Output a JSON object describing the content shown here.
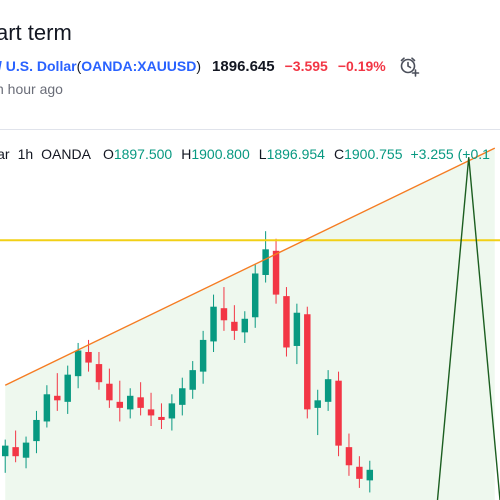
{
  "header": {
    "title": "art term",
    "symbol_name": "/ U.S. Dollar",
    "paren_open": "(",
    "symbol_code": "OANDA:XAUUSD",
    "paren_close": ")",
    "price": "1896.645",
    "change": "−3.595",
    "change_percent": "−0.19%",
    "time_ago": "n hour ago",
    "alarm_icon": "alarm-clock-plus-icon"
  },
  "legend": {
    "symbol_fragment": "lar",
    "timeframe": "1h",
    "exchange": "OANDA",
    "open_key": "O",
    "open": "1897.500",
    "high_key": "H",
    "high": "1900.800",
    "low_key": "L",
    "low": "1896.954",
    "close_key": "C",
    "close": "1900.755",
    "change": "+3.255 (+0.1"
  },
  "colors": {
    "up": "#089981",
    "down": "#f23645",
    "trendline": "#f57c22",
    "horizontal_line": "#f2d016",
    "pattern_line": "#1b5e20",
    "shading": "#eef8ee"
  },
  "chart_data": {
    "type": "candlestick",
    "candles": [
      {
        "o": 1882.9,
        "h": 1884.0,
        "l": 1881.8,
        "c": 1883.6
      },
      {
        "o": 1883.5,
        "h": 1884.6,
        "l": 1882.5,
        "c": 1882.9
      },
      {
        "o": 1882.8,
        "h": 1884.2,
        "l": 1882.1,
        "c": 1883.8
      },
      {
        "o": 1883.9,
        "h": 1885.9,
        "l": 1883.1,
        "c": 1885.3
      },
      {
        "o": 1885.2,
        "h": 1887.6,
        "l": 1884.8,
        "c": 1887.0
      },
      {
        "o": 1886.9,
        "h": 1888.4,
        "l": 1885.9,
        "c": 1886.6
      },
      {
        "o": 1886.5,
        "h": 1888.9,
        "l": 1885.7,
        "c": 1888.3
      },
      {
        "o": 1888.2,
        "h": 1890.4,
        "l": 1887.4,
        "c": 1889.9
      },
      {
        "o": 1889.8,
        "h": 1890.6,
        "l": 1888.5,
        "c": 1889.1
      },
      {
        "o": 1889.0,
        "h": 1889.8,
        "l": 1887.3,
        "c": 1887.8
      },
      {
        "o": 1887.7,
        "h": 1888.7,
        "l": 1886.1,
        "c": 1886.6
      },
      {
        "o": 1886.5,
        "h": 1887.9,
        "l": 1885.2,
        "c": 1886.1
      },
      {
        "o": 1886.0,
        "h": 1887.4,
        "l": 1885.4,
        "c": 1886.9
      },
      {
        "o": 1886.8,
        "h": 1887.8,
        "l": 1885.6,
        "c": 1886.1
      },
      {
        "o": 1886.0,
        "h": 1887.1,
        "l": 1884.9,
        "c": 1885.6
      },
      {
        "o": 1885.5,
        "h": 1886.4,
        "l": 1884.7,
        "c": 1885.3
      },
      {
        "o": 1885.4,
        "h": 1887.0,
        "l": 1884.6,
        "c": 1886.4
      },
      {
        "o": 1886.3,
        "h": 1888.1,
        "l": 1885.6,
        "c": 1887.4
      },
      {
        "o": 1887.3,
        "h": 1889.2,
        "l": 1886.7,
        "c": 1888.6
      },
      {
        "o": 1888.5,
        "h": 1891.2,
        "l": 1887.7,
        "c": 1890.6
      },
      {
        "o": 1890.5,
        "h": 1893.6,
        "l": 1889.8,
        "c": 1892.8
      },
      {
        "o": 1892.7,
        "h": 1894.1,
        "l": 1891.2,
        "c": 1891.9
      },
      {
        "o": 1891.8,
        "h": 1892.9,
        "l": 1890.6,
        "c": 1891.2
      },
      {
        "o": 1891.1,
        "h": 1892.5,
        "l": 1890.4,
        "c": 1892.0
      },
      {
        "o": 1892.1,
        "h": 1895.6,
        "l": 1891.4,
        "c": 1895.0
      },
      {
        "o": 1894.9,
        "h": 1897.8,
        "l": 1894.4,
        "c": 1896.6
      },
      {
        "o": 1896.5,
        "h": 1897.3,
        "l": 1893.0,
        "c": 1893.6
      },
      {
        "o": 1893.5,
        "h": 1894.1,
        "l": 1889.5,
        "c": 1890.1
      },
      {
        "o": 1890.2,
        "h": 1893.0,
        "l": 1889.0,
        "c": 1892.4
      },
      {
        "o": 1892.3,
        "h": 1892.8,
        "l": 1885.4,
        "c": 1886.0
      },
      {
        "o": 1886.1,
        "h": 1887.3,
        "l": 1884.3,
        "c": 1886.6
      },
      {
        "o": 1886.5,
        "h": 1888.6,
        "l": 1885.9,
        "c": 1888.0
      },
      {
        "o": 1887.9,
        "h": 1888.5,
        "l": 1882.9,
        "c": 1883.6
      },
      {
        "o": 1883.5,
        "h": 1884.4,
        "l": 1881.6,
        "c": 1882.3
      },
      {
        "o": 1882.2,
        "h": 1882.9,
        "l": 1880.8,
        "c": 1881.4
      },
      {
        "o": 1881.3,
        "h": 1882.6,
        "l": 1880.5,
        "c": 1882.0
      }
    ],
    "trendline": {
      "from": [
        0,
        1887.6
      ],
      "to": [
        47,
        1903.3
      ]
    },
    "horizontal_line": 1897.2,
    "pattern": [
      [
        41.5,
        1880.0
      ],
      [
        44.5,
        1902.7
      ],
      [
        47.5,
        1880.0
      ]
    ],
    "ylim": [
      1880.0,
      1904.5
    ],
    "xlim": [
      -0.5,
      47.5
    ]
  }
}
